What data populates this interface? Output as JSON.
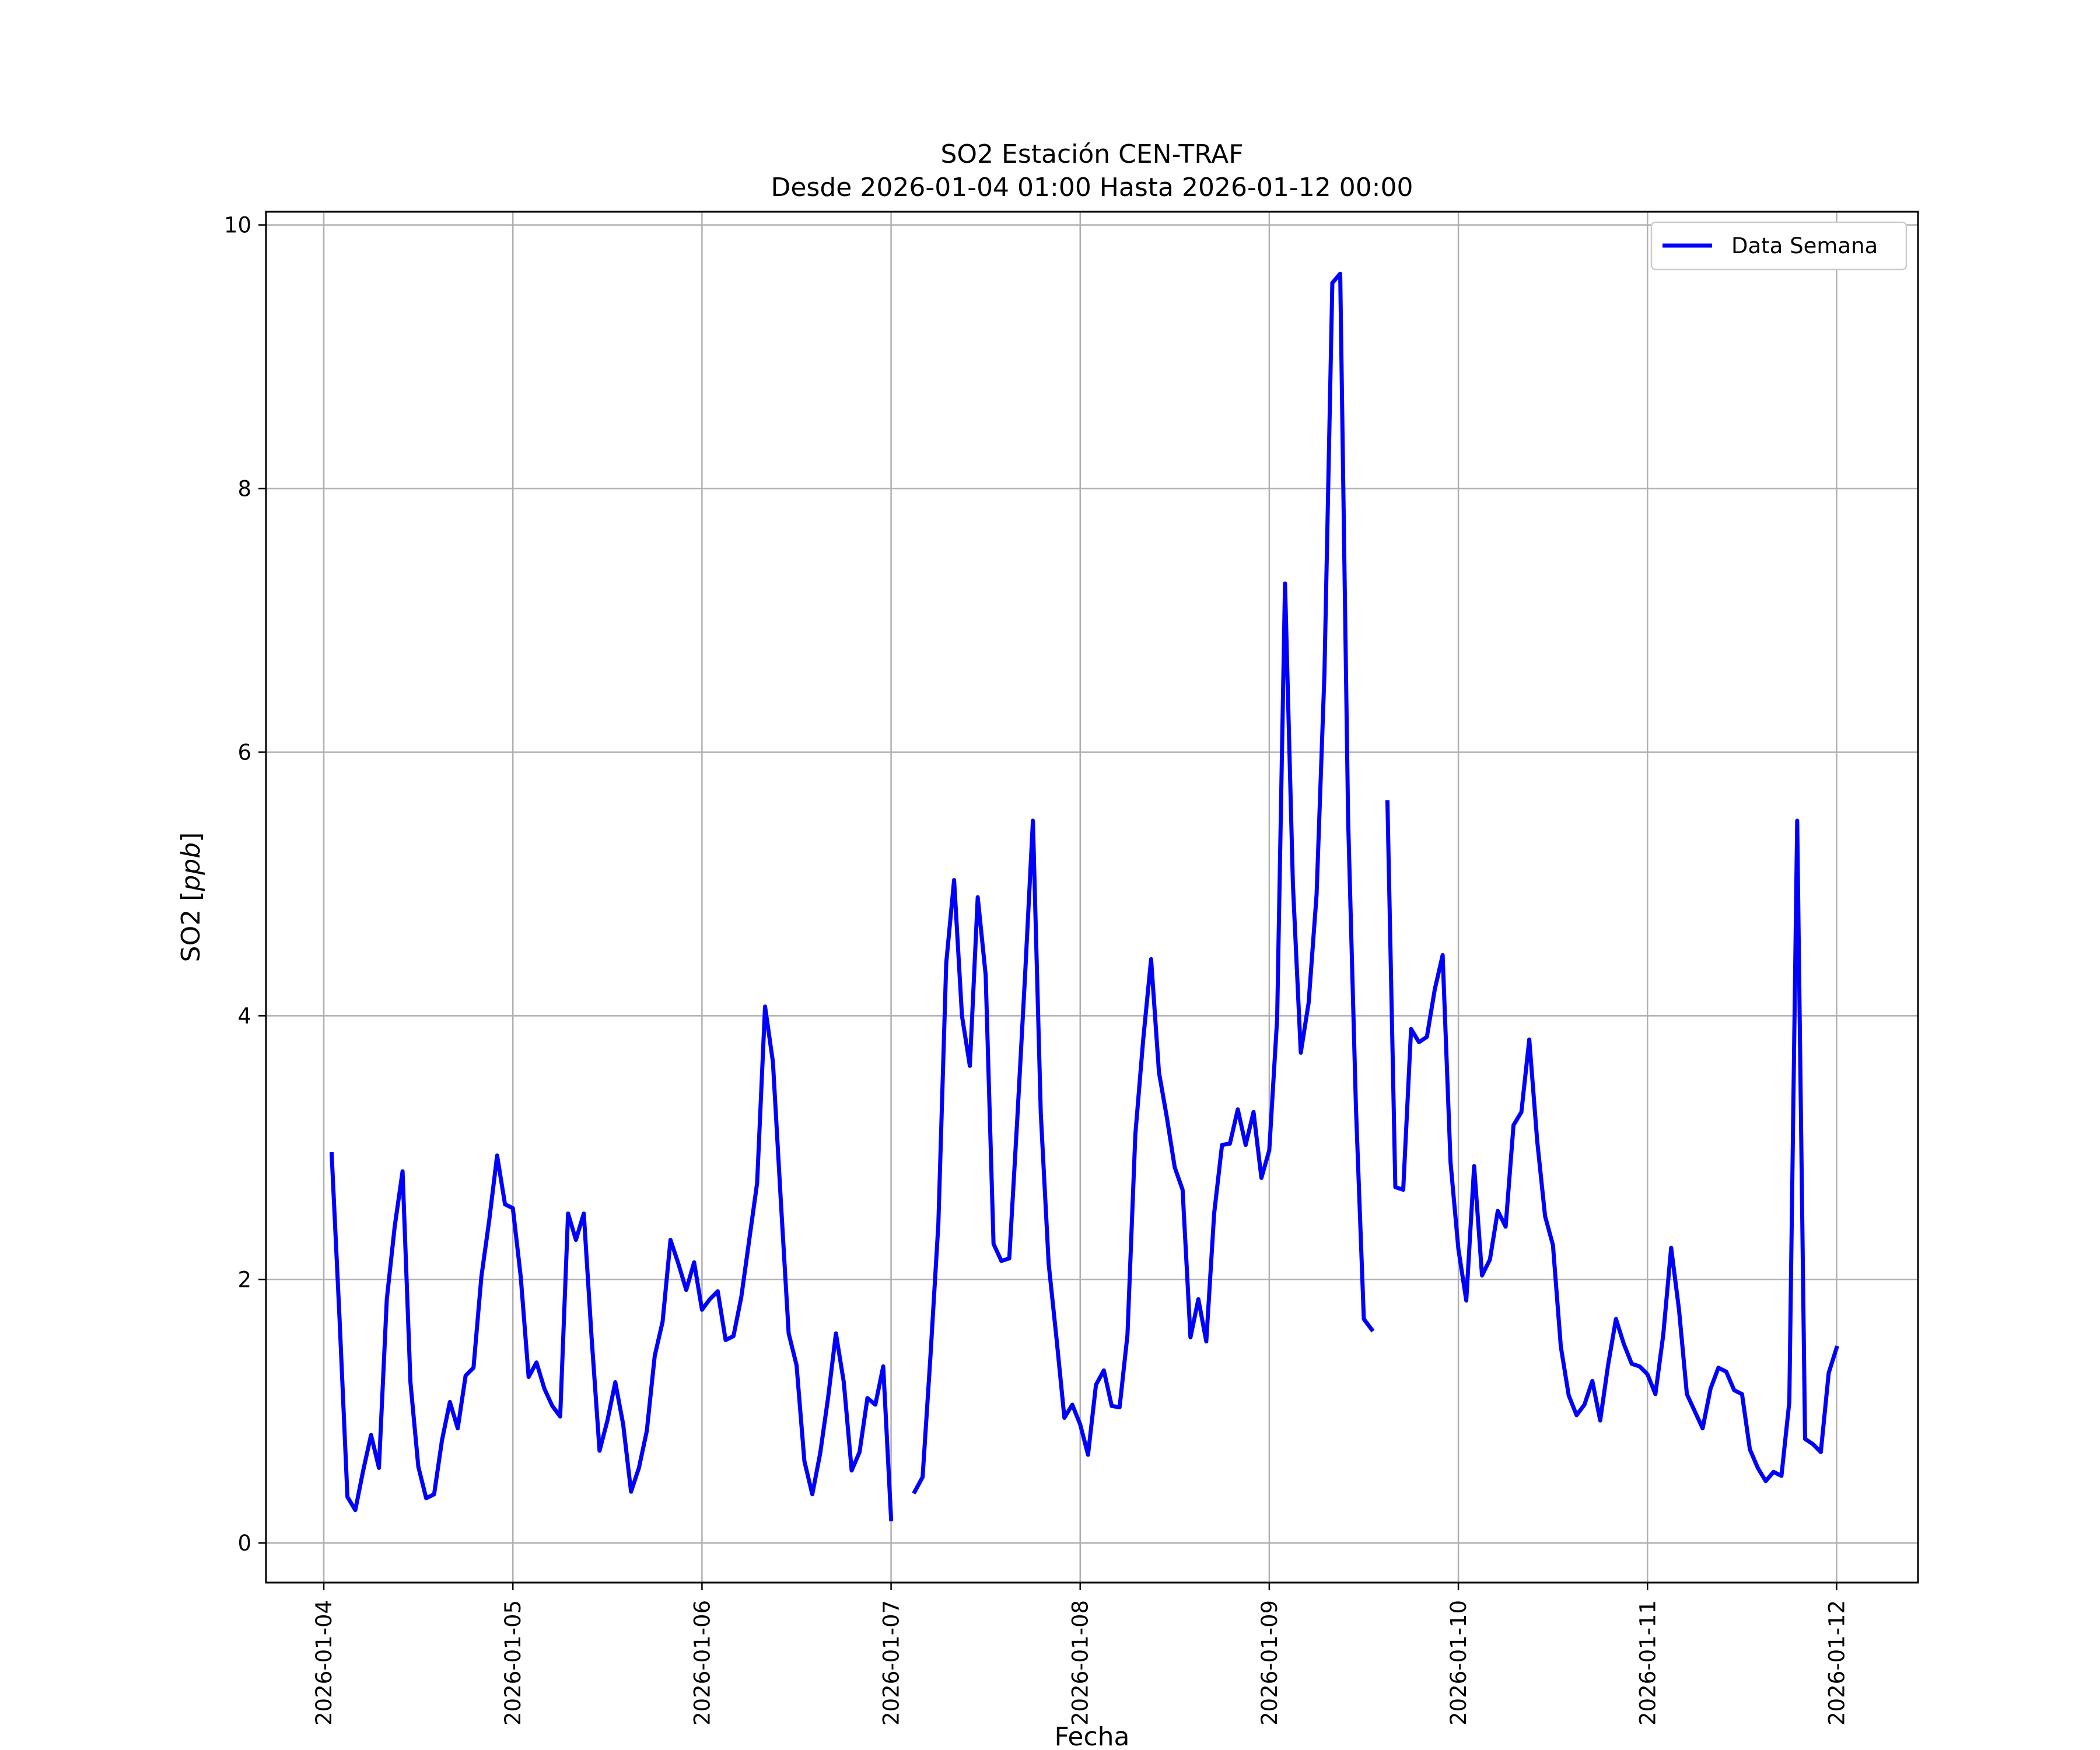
{
  "chart_data": {
    "type": "line",
    "title": "SO2 Estación CEN-TRAF",
    "subtitle": "Desde 2026-01-04 01:00 Hasta 2026-01-12 00:00",
    "xlabel": "Fecha",
    "ylabel_main": "SO2 [",
    "ylabel_unit": "ppb",
    "ylabel_close": "]",
    "x_ticks": [
      "2026-01-04",
      "2026-01-05",
      "2026-01-06",
      "2026-01-07",
      "2026-01-08",
      "2026-01-09",
      "2026-01-10",
      "2026-01-11",
      "2026-01-12"
    ],
    "y_ticks": [
      "0",
      "2",
      "4",
      "6",
      "8",
      "10"
    ],
    "xlim": [
      "2026-01-03 16:40",
      "2026-01-12 10:20"
    ],
    "ylim": [
      -0.3,
      10.1
    ],
    "grid": true,
    "legend_position": "top-right",
    "series": [
      {
        "name": "Data Semana",
        "color": "#0000ff",
        "segments": [
          {
            "start": "2026-01-04 01:00",
            "step_hours": 1,
            "values": [
              2.95,
              1.7,
              0.35,
              0.25,
              0.55,
              0.82,
              0.57,
              1.85,
              2.4,
              2.82,
              1.22,
              0.58,
              0.34,
              0.37,
              0.78,
              1.07,
              0.87,
              1.27,
              1.33,
              2.02,
              2.45,
              2.94,
              2.57,
              2.54,
              2.02,
              1.26,
              1.37,
              1.17,
              1.04,
              0.96,
              2.5,
              2.3,
              2.5,
              1.55,
              0.7,
              0.93,
              1.22,
              0.9,
              0.39,
              0.57,
              0.85,
              1.42,
              1.68,
              2.3,
              2.12,
              1.92,
              2.13,
              1.77,
              1.85,
              1.91,
              1.54,
              1.57,
              1.87,
              2.3,
              2.73,
              4.07,
              3.65,
              2.6,
              1.59,
              1.35,
              0.62,
              0.37,
              0.68,
              1.1,
              1.59,
              1.22,
              0.55,
              0.69,
              1.1,
              1.05,
              1.34,
              0.18
            ]
          },
          {
            "start": "2026-01-07 03:00",
            "step_hours": 1,
            "values": [
              0.39,
              0.5,
              1.42,
              2.42,
              4.4,
              5.03,
              4.0,
              3.62,
              4.9,
              4.31,
              2.27,
              2.14,
              2.16,
              3.2,
              4.3,
              5.48,
              3.26,
              2.12,
              1.55,
              0.95,
              1.05,
              0.9,
              0.67,
              1.2,
              1.31,
              1.04,
              1.03,
              1.58,
              3.1,
              3.82,
              4.43,
              3.57,
              3.23,
              2.85,
              2.68,
              1.56,
              1.85,
              1.53,
              2.5,
              3.02,
              3.03,
              3.29,
              3.02,
              3.27,
              2.77,
              2.98,
              3.98,
              7.28,
              5.0,
              3.72,
              4.1,
              4.92,
              6.6,
              9.56,
              9.63,
              5.5,
              3.3,
              1.7,
              1.62
            ]
          },
          {
            "start": "2026-01-09 15:00",
            "step_hours": 1,
            "values": [
              5.62,
              2.7,
              2.68,
              3.9,
              3.8,
              3.84,
              4.2,
              4.46,
              2.89,
              2.23,
              1.84,
              2.86,
              2.03,
              2.15,
              2.52,
              2.4,
              3.17,
              3.27,
              3.82,
              3.05,
              2.48,
              2.26,
              1.49,
              1.12,
              0.97,
              1.05,
              1.23,
              0.93,
              1.35,
              1.7,
              1.51,
              1.36,
              1.34,
              1.28,
              1.13,
              1.58,
              2.24,
              1.77,
              1.13,
              1.0,
              0.87,
              1.17,
              1.33,
              1.3,
              1.16,
              1.13,
              0.71,
              0.57,
              0.47,
              0.54,
              0.51,
              1.07,
              5.48,
              0.79,
              0.75,
              0.69,
              1.29,
              1.48
            ]
          }
        ]
      }
    ]
  }
}
